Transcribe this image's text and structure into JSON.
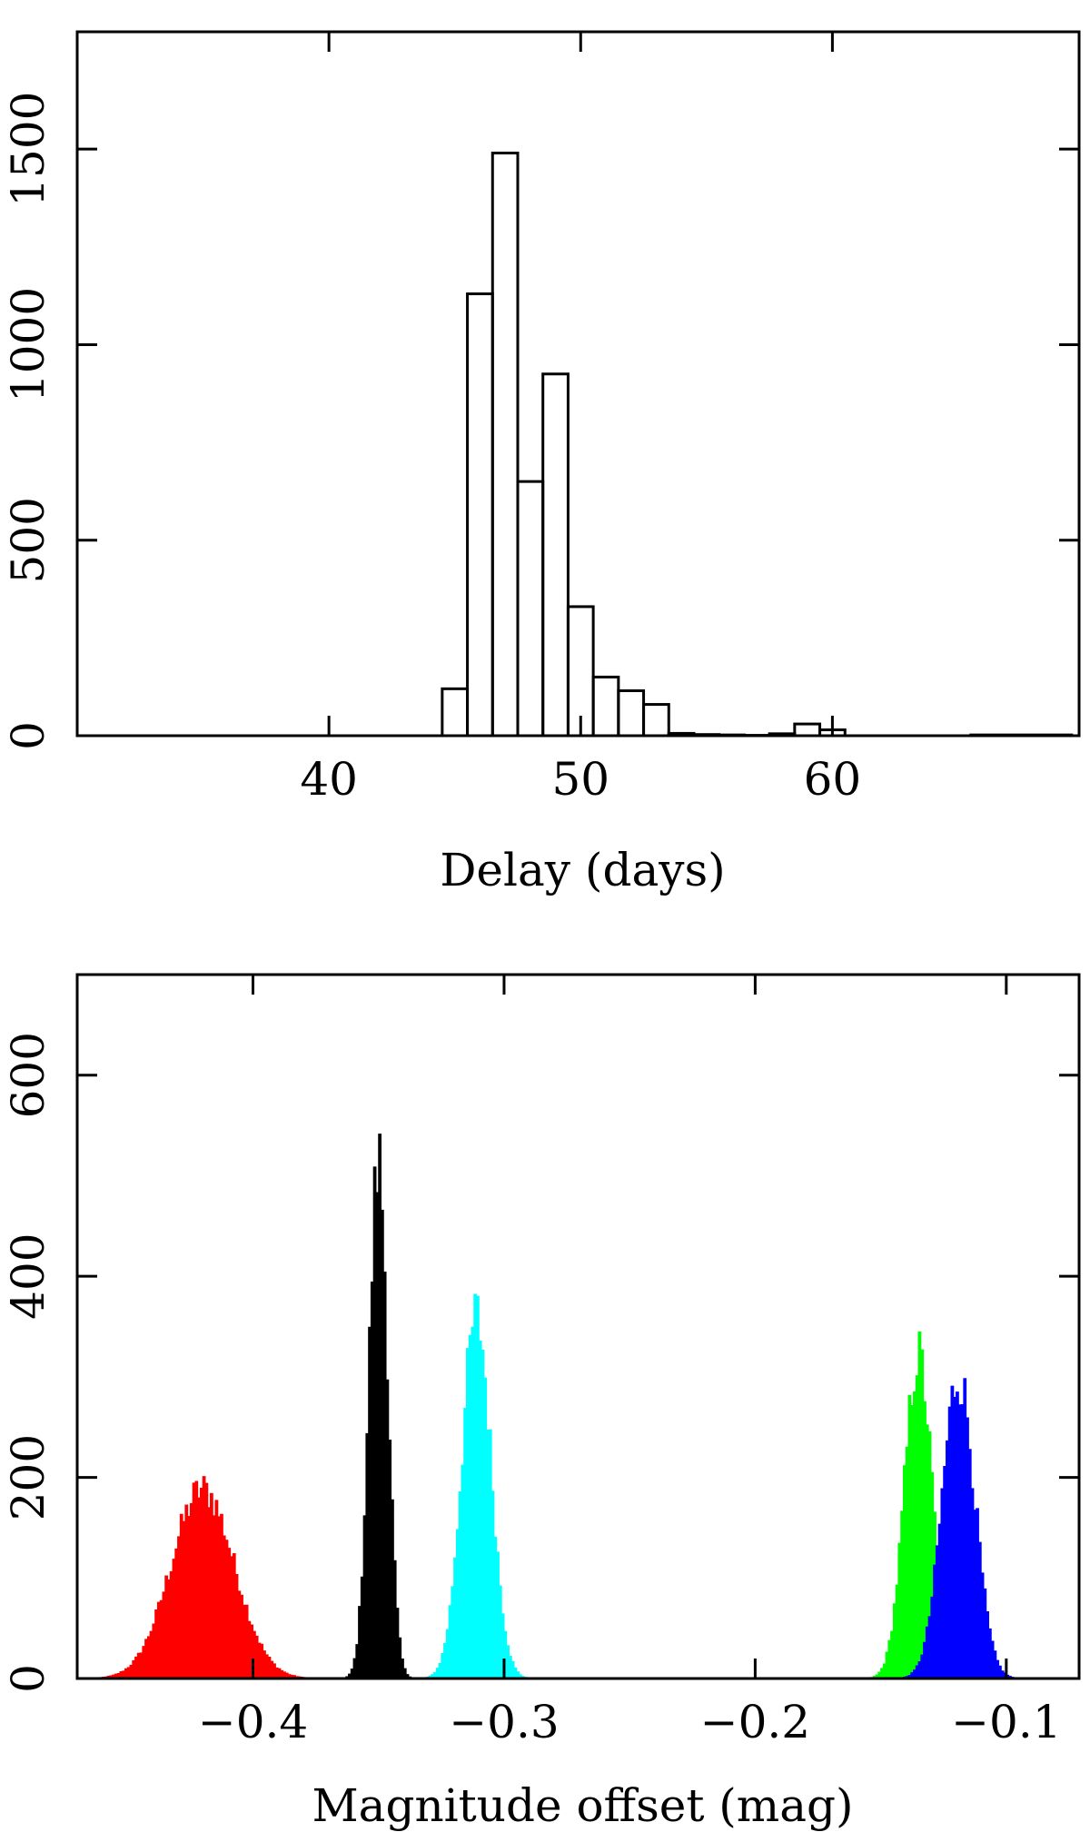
{
  "chart_data": [
    {
      "type": "bar",
      "xlabel": "Delay (days)",
      "ylabel": "",
      "xlim": [
        30,
        69.8
      ],
      "ylim": [
        0,
        1800
      ],
      "xticks": [
        40,
        50,
        60
      ],
      "yticks": [
        0,
        500,
        1000,
        1500
      ],
      "bin_width": 1,
      "bins": [
        {
          "x0": 44.5,
          "x1": 45.5,
          "count": 120
        },
        {
          "x0": 45.5,
          "x1": 46.5,
          "count": 1130
        },
        {
          "x0": 46.5,
          "x1": 47.5,
          "count": 1490
        },
        {
          "x0": 47.5,
          "x1": 48.5,
          "count": 650
        },
        {
          "x0": 48.5,
          "x1": 49.5,
          "count": 925
        },
        {
          "x0": 49.5,
          "x1": 50.5,
          "count": 330
        },
        {
          "x0": 50.5,
          "x1": 51.5,
          "count": 150
        },
        {
          "x0": 51.5,
          "x1": 52.5,
          "count": 115
        },
        {
          "x0": 52.5,
          "x1": 53.5,
          "count": 80
        },
        {
          "x0": 53.5,
          "x1": 54.5,
          "count": 6
        },
        {
          "x0": 54.5,
          "x1": 55.5,
          "count": 3
        },
        {
          "x0": 55.5,
          "x1": 56.5,
          "count": 2
        },
        {
          "x0": 56.5,
          "x1": 57.5,
          "count": 1
        },
        {
          "x0": 57.5,
          "x1": 58.5,
          "count": 5
        },
        {
          "x0": 58.5,
          "x1": 59.5,
          "count": 30
        },
        {
          "x0": 59.5,
          "x1": 60.5,
          "count": 15
        },
        {
          "x0": 65.5,
          "x1": 69.5,
          "count": 2
        }
      ]
    },
    {
      "type": "histogram",
      "xlabel": "Magnitude offset (mag)",
      "ylabel": "",
      "xlim": [
        -0.47,
        -0.071
      ],
      "ylim": [
        0,
        700
      ],
      "xticks": [
        -0.4,
        -0.3,
        -0.2,
        -0.1
      ],
      "xtick_labels": [
        "−0.4",
        "−0.3",
        "−0.2",
        "−0.1"
      ],
      "yticks": [
        0,
        200,
        400,
        600
      ],
      "bin_width": 0.001,
      "series": [
        {
          "color": "#ff0000",
          "center": -0.42,
          "sigma": 0.0125,
          "peak": 188,
          "range": [
            -0.465,
            -0.37
          ]
        },
        {
          "color": "#000000",
          "center": -0.35,
          "sigma": 0.0037,
          "peak": 515,
          "range": [
            -0.366,
            -0.335
          ]
        },
        {
          "color": "#00ffff",
          "center": -0.311,
          "sigma": 0.0058,
          "peak": 360,
          "range": [
            -0.335,
            -0.255
          ]
        },
        {
          "color": "#00ff00",
          "center": -0.135,
          "sigma": 0.0055,
          "peak": 320,
          "range": [
            -0.178,
            -0.115
          ]
        },
        {
          "color": "#0000ff",
          "center": -0.119,
          "sigma": 0.0065,
          "peak": 300,
          "range": [
            -0.16,
            -0.072
          ]
        }
      ]
    }
  ]
}
